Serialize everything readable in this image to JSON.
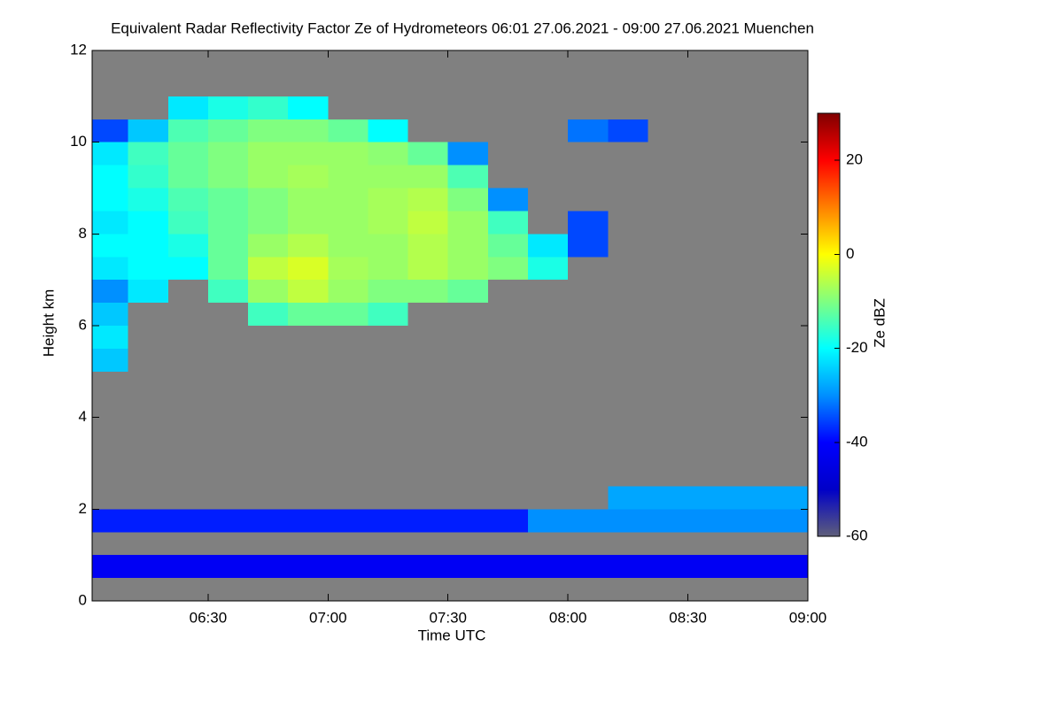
{
  "chart_data": {
    "type": "heatmap",
    "title": "Equivalent Radar Reflectivity Factor Ze of Hydrometeors   06:01 27.06.2021 - 09:00 27.06.2021 Muenchen",
    "xlabel": "Time UTC",
    "ylabel": "Height km",
    "colorbar_label": "Ze dBZ",
    "xlim": [
      361,
      540
    ],
    "xticks": [
      {
        "value": 390,
        "label": "06:30"
      },
      {
        "value": 420,
        "label": "07:00"
      },
      {
        "value": 450,
        "label": "07:30"
      },
      {
        "value": 480,
        "label": "08:00"
      },
      {
        "value": 510,
        "label": "08:30"
      },
      {
        "value": 540,
        "label": "09:00"
      }
    ],
    "ylim": [
      0,
      12
    ],
    "yticks": [
      0,
      2,
      4,
      6,
      8,
      10,
      12
    ],
    "zlim": [
      -60,
      30
    ],
    "zticks": [
      -60,
      -40,
      -20,
      0,
      20
    ],
    "background": "#808080",
    "colormap": [
      "#5f5f7a",
      "#0000c8",
      "#0000ff",
      "#0090ff",
      "#00ffff",
      "#80ff80",
      "#ffff00",
      "#ff8000",
      "#ff0000",
      "#800000"
    ],
    "x_edges": [
      361,
      370,
      380,
      390,
      400,
      410,
      420,
      430,
      440,
      450,
      460,
      470,
      480,
      490,
      500,
      510,
      520,
      530,
      540
    ],
    "y_edges": [
      0,
      0.5,
      1,
      1.5,
      2,
      2.5,
      3,
      3.5,
      4,
      4.5,
      5,
      5.5,
      6,
      6.5,
      7,
      7.5,
      8,
      8.5,
      9,
      9.5,
      10,
      10.5,
      11,
      11.5,
      12
    ],
    "z": [
      [
        null,
        null,
        null,
        null,
        null,
        null,
        null,
        null,
        null,
        null,
        null,
        null,
        null,
        null,
        null,
        null,
        null,
        null
      ],
      [
        -42,
        -42,
        -42,
        -42,
        -42,
        -42,
        -42,
        -42,
        -42,
        -42,
        -42,
        -42,
        -42,
        -42,
        -42,
        -42,
        -42,
        -42
      ],
      [
        null,
        null,
        null,
        null,
        null,
        null,
        null,
        null,
        null,
        null,
        null,
        null,
        null,
        null,
        null,
        null,
        null,
        null
      ],
      [
        -38,
        -38,
        -38,
        -38,
        -38,
        -38,
        -38,
        -38,
        -38,
        -38,
        -38,
        -30,
        -30,
        -30,
        -30,
        -30,
        -30,
        -30
      ],
      [
        null,
        null,
        null,
        null,
        null,
        null,
        null,
        null,
        null,
        null,
        null,
        null,
        null,
        -28,
        -28,
        -28,
        -28,
        -28
      ],
      [
        null,
        null,
        null,
        null,
        null,
        null,
        null,
        null,
        null,
        null,
        null,
        null,
        null,
        null,
        null,
        null,
        null,
        null
      ],
      [
        null,
        null,
        null,
        null,
        null,
        null,
        null,
        null,
        null,
        null,
        null,
        null,
        null,
        null,
        null,
        null,
        null,
        null
      ],
      [
        null,
        null,
        null,
        null,
        null,
        null,
        null,
        null,
        null,
        null,
        null,
        null,
        null,
        null,
        null,
        null,
        null,
        null
      ],
      [
        null,
        null,
        null,
        null,
        null,
        null,
        null,
        null,
        null,
        null,
        null,
        null,
        null,
        null,
        null,
        null,
        null,
        null
      ],
      [
        null,
        null,
        null,
        null,
        null,
        null,
        null,
        null,
        null,
        null,
        null,
        null,
        null,
        null,
        null,
        null,
        null,
        null
      ],
      [
        -25,
        null,
        null,
        null,
        null,
        null,
        null,
        null,
        null,
        null,
        null,
        null,
        null,
        null,
        null,
        null,
        null,
        null
      ],
      [
        -22,
        null,
        null,
        null,
        null,
        null,
        null,
        null,
        null,
        null,
        null,
        null,
        null,
        null,
        null,
        null,
        null,
        null
      ],
      [
        -25,
        null,
        null,
        null,
        -15,
        -12,
        -12,
        -15,
        null,
        null,
        null,
        null,
        null,
        null,
        null,
        null,
        null,
        null
      ],
      [
        -30,
        -22,
        null,
        -15,
        -8,
        -5,
        -8,
        -10,
        -10,
        -12,
        null,
        null,
        null,
        null,
        null,
        null,
        null,
        null
      ],
      [
        -22,
        -20,
        -20,
        -12,
        -5,
        -3,
        -7,
        -8,
        -6,
        -8,
        -10,
        -18,
        null,
        null,
        null,
        null,
        null,
        null
      ],
      [
        -20,
        -20,
        -18,
        -12,
        -8,
        -6,
        -8,
        -8,
        -6,
        -8,
        -12,
        -22,
        -35,
        null,
        null,
        null,
        null,
        null
      ],
      [
        -22,
        -20,
        -15,
        -12,
        -10,
        -8,
        -8,
        -7,
        -5,
        -8,
        -15,
        null,
        -35,
        null,
        null,
        null,
        null,
        null
      ],
      [
        -20,
        -18,
        -14,
        -12,
        -10,
        -8,
        -8,
        -7,
        -6,
        -10,
        -30,
        null,
        null,
        null,
        null,
        null,
        null,
        null
      ],
      [
        -20,
        -16,
        -12,
        -10,
        -8,
        -7,
        -8,
        -8,
        -8,
        -14,
        null,
        null,
        null,
        null,
        null,
        null,
        null,
        null
      ],
      [
        -22,
        -15,
        -12,
        -10,
        -8,
        -8,
        -8,
        -9,
        -12,
        -30,
        null,
        null,
        null,
        null,
        null,
        null,
        null,
        null
      ],
      [
        -35,
        -25,
        -14,
        -12,
        -10,
        -10,
        -12,
        -20,
        null,
        null,
        null,
        null,
        -32,
        -35,
        null,
        null,
        null,
        null
      ],
      [
        null,
        null,
        -22,
        -18,
        -16,
        -20,
        null,
        null,
        null,
        null,
        null,
        null,
        null,
        null,
        null,
        null,
        null,
        null
      ],
      [
        null,
        null,
        null,
        null,
        null,
        null,
        null,
        null,
        null,
        null,
        null,
        null,
        null,
        null,
        null,
        null,
        null,
        null
      ],
      [
        null,
        null,
        null,
        null,
        null,
        null,
        null,
        null,
        null,
        null,
        null,
        null,
        null,
        null,
        null,
        null,
        null,
        null
      ]
    ]
  }
}
